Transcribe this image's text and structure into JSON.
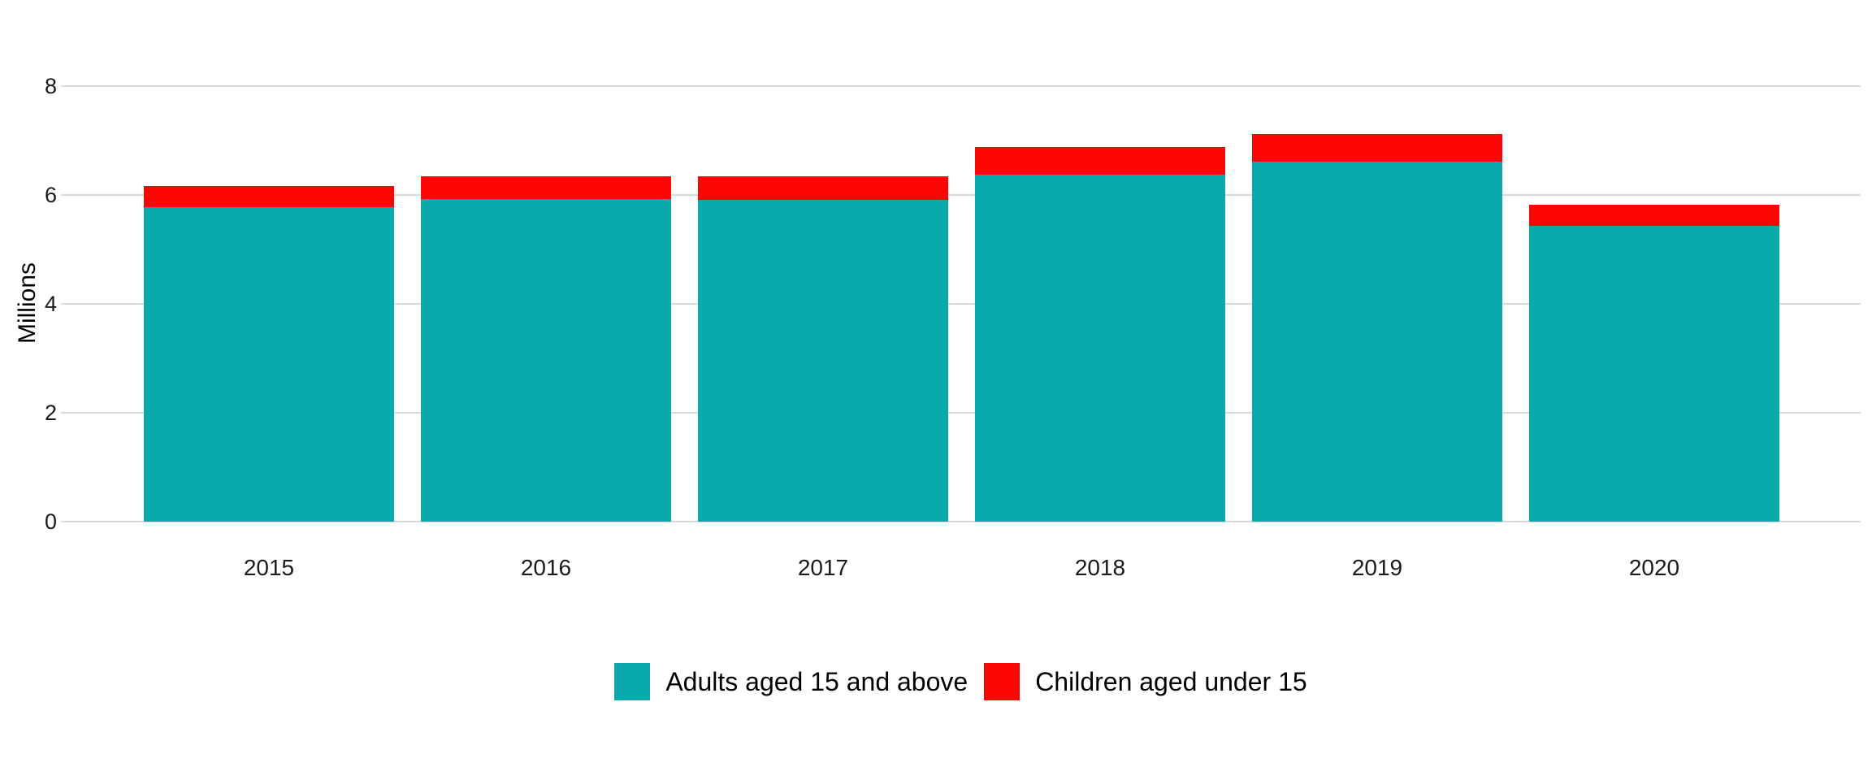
{
  "chart_data": {
    "type": "bar",
    "stacked": true,
    "title": "",
    "xlabel": "",
    "ylabel": "Millions",
    "categories": [
      "2015",
      "2016",
      "2017",
      "2018",
      "2019",
      "2020"
    ],
    "series": [
      {
        "name": "Adults aged 15 and above",
        "color": "#0AAAAC",
        "values": [
          5.78,
          5.93,
          5.91,
          6.37,
          6.61,
          5.43
        ]
      },
      {
        "name": "Children aged under 15",
        "color": "#FB0505",
        "values": [
          0.39,
          0.42,
          0.44,
          0.51,
          0.51,
          0.39
        ]
      }
    ],
    "totals": [
      6.17,
      6.35,
      6.35,
      6.88,
      7.12,
      5.82
    ],
    "ylim": [
      0,
      8
    ],
    "yticks": [
      0,
      2,
      4,
      6,
      8
    ],
    "grid": true,
    "legend_position": "bottom"
  },
  "colors": {
    "background": "#FFFFFF",
    "gridline": "#D9D9D9",
    "axis_text": "#1A1A1A",
    "adults": "#0AAAAC",
    "children": "#FB0505"
  }
}
